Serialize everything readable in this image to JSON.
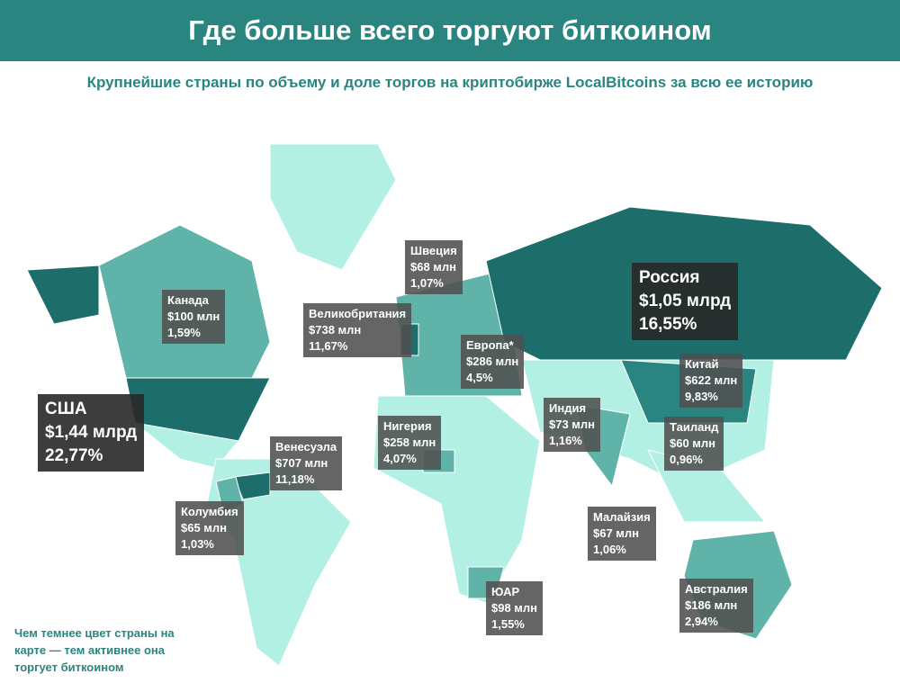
{
  "header": {
    "title": "Где больше всего торгуют биткоином",
    "subtitle": "Крупнейшие страны по объему и доле торгов на криптобирже LocalBitcoins за всю ее историю"
  },
  "labels": [
    {
      "name": "Канада",
      "volume": "$100 млн",
      "share": "1,59%"
    },
    {
      "name": "Великобритания",
      "volume": "$738 млн",
      "share": "11,67%"
    },
    {
      "name": "Швеция",
      "volume": "$68 млн",
      "share": "1,07%"
    },
    {
      "name": "Европа*",
      "volume": "$286 млн",
      "share": "4,5%"
    },
    {
      "name": "Россия",
      "volume": "$1,05 млрд",
      "share": "16,55%"
    },
    {
      "name": "Китай",
      "volume": "$622 млн",
      "share": "9,83%"
    },
    {
      "name": "США",
      "volume": "$1,44 млрд",
      "share": "22,77%"
    },
    {
      "name": "Индия",
      "volume": "$73 млн",
      "share": "1,16%"
    },
    {
      "name": "Таиланд",
      "volume": "$60 млн",
      "share": "0,96%"
    },
    {
      "name": "Нигерия",
      "volume": "$258 млн",
      "share": "4,07%"
    },
    {
      "name": "Венесуэла",
      "volume": "$707 млн",
      "share": "11,18%"
    },
    {
      "name": "Колумбия",
      "volume": "$65 млн",
      "share": "1,03%"
    },
    {
      "name": "Малайзия",
      "volume": "$67 млн",
      "share": "1,06%"
    },
    {
      "name": "ЮАР",
      "volume": "$98 млн",
      "share": "1,55%"
    },
    {
      "name": "Австралия",
      "volume": "$186 млн",
      "share": "2,94%"
    }
  ],
  "note": "Чем темнее цвет страны на карте — тем активнее она торгует биткоином"
}
